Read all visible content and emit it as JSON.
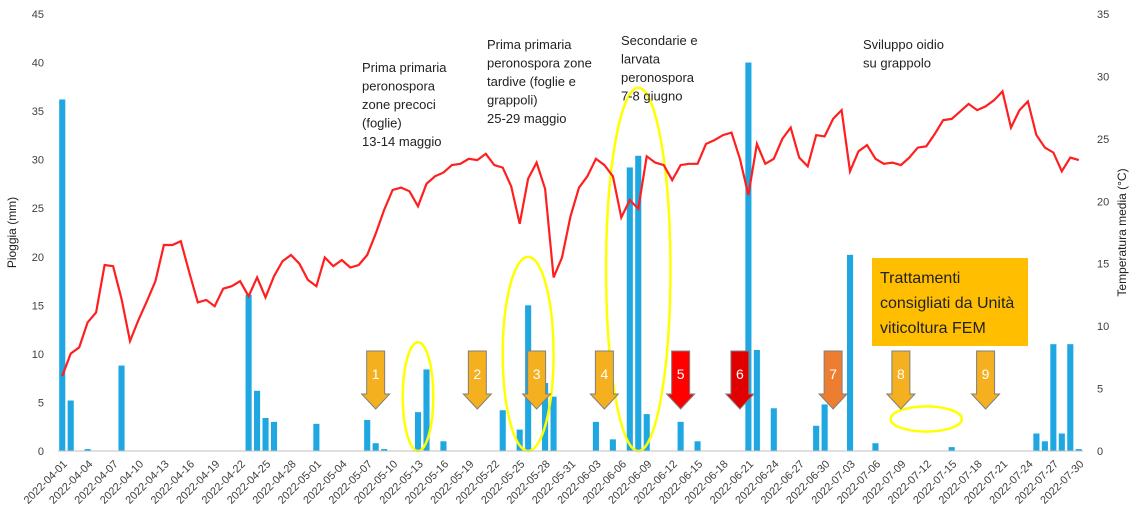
{
  "chart_data": {
    "type": "bar+line",
    "x_start": "2022-04-01",
    "x_end": "2022-07-30",
    "x_tick_labels": [
      "2022-04-01",
      "2022-04-04",
      "2022-04-07",
      "2022-04-10",
      "2022-04-13",
      "2022-04-16",
      "2022-04-19",
      "2022-04-22",
      "2022-04-25",
      "2022-04-28",
      "2022-05-01",
      "2022-05-04",
      "2022-05-07",
      "2022-05-10",
      "2022-05-13",
      "2022-05-16",
      "2022-05-19",
      "2022-05-22",
      "2022-05-25",
      "2022-05-28",
      "2022-05-31",
      "2022-06-03",
      "2022-06-06",
      "2022-06-09",
      "2022-06-12",
      "2022-06-15",
      "2022-06-18",
      "2022-06-21",
      "2022-06-24",
      "2022-06-27",
      "2022-06-30",
      "2022-07-03",
      "2022-07-06",
      "2022-07-09",
      "2022-07-12",
      "2022-07-15",
      "2022-07-18",
      "2022-07-21",
      "2022-07-24",
      "2022-07-27",
      "2022-07-30"
    ],
    "ylabel_left": "Pioggia (mm)",
    "ylabel_right": "Temperatura media (°C)",
    "ylim_left": [
      0,
      45
    ],
    "ylim_right": [
      0,
      35
    ],
    "yticks_left": [
      "0",
      "5",
      "10",
      "15",
      "20",
      "25",
      "30",
      "35",
      "40",
      "45"
    ],
    "yticks_right": [
      "0",
      "5",
      "10",
      "15",
      "20",
      "25",
      "30",
      "35"
    ],
    "bar_color": "#1ea7e1",
    "line_color": "#ff1f1f",
    "rain": [
      {
        "date": "2022-04-01",
        "mm": 36.2
      },
      {
        "date": "2022-04-02",
        "mm": 5.2
      },
      {
        "date": "2022-04-04",
        "mm": 0.2
      },
      {
        "date": "2022-04-08",
        "mm": 8.8
      },
      {
        "date": "2022-04-23",
        "mm": 16.1
      },
      {
        "date": "2022-04-24",
        "mm": 6.2
      },
      {
        "date": "2022-04-25",
        "mm": 3.4
      },
      {
        "date": "2022-04-26",
        "mm": 3.0
      },
      {
        "date": "2022-05-01",
        "mm": 2.8
      },
      {
        "date": "2022-05-07",
        "mm": 3.2
      },
      {
        "date": "2022-05-08",
        "mm": 0.8
      },
      {
        "date": "2022-05-09",
        "mm": 0.2
      },
      {
        "date": "2022-05-13",
        "mm": 4.0
      },
      {
        "date": "2022-05-14",
        "mm": 8.4
      },
      {
        "date": "2022-05-16",
        "mm": 1.0
      },
      {
        "date": "2022-05-23",
        "mm": 4.2
      },
      {
        "date": "2022-05-25",
        "mm": 2.2
      },
      {
        "date": "2022-05-26",
        "mm": 15.0
      },
      {
        "date": "2022-05-28",
        "mm": 7.0
      },
      {
        "date": "2022-05-29",
        "mm": 5.6
      },
      {
        "date": "2022-06-03",
        "mm": 3.0
      },
      {
        "date": "2022-06-05",
        "mm": 1.2
      },
      {
        "date": "2022-06-07",
        "mm": 29.2
      },
      {
        "date": "2022-06-08",
        "mm": 30.4
      },
      {
        "date": "2022-06-09",
        "mm": 3.8
      },
      {
        "date": "2022-06-13",
        "mm": 3.0
      },
      {
        "date": "2022-06-15",
        "mm": 1.0
      },
      {
        "date": "2022-06-21",
        "mm": 40.0
      },
      {
        "date": "2022-06-22",
        "mm": 10.4
      },
      {
        "date": "2022-06-24",
        "mm": 4.4
      },
      {
        "date": "2022-06-29",
        "mm": 2.6
      },
      {
        "date": "2022-06-30",
        "mm": 4.8
      },
      {
        "date": "2022-07-03",
        "mm": 20.2
      },
      {
        "date": "2022-07-06",
        "mm": 0.8
      },
      {
        "date": "2022-07-15",
        "mm": 0.4
      },
      {
        "date": "2022-07-25",
        "mm": 1.8
      },
      {
        "date": "2022-07-26",
        "mm": 1.0
      },
      {
        "date": "2022-07-27",
        "mm": 11.0
      },
      {
        "date": "2022-07-28",
        "mm": 1.8
      },
      {
        "date": "2022-07-29",
        "mm": 11.0
      },
      {
        "date": "2022-07-30",
        "mm": 0.2
      }
    ],
    "temperature": [
      {
        "date": "2022-04-01",
        "c": 6.0
      },
      {
        "date": "2022-04-02",
        "c": 7.8
      },
      {
        "date": "2022-04-03",
        "c": 8.3
      },
      {
        "date": "2022-04-04",
        "c": 10.3
      },
      {
        "date": "2022-04-05",
        "c": 11.1
      },
      {
        "date": "2022-04-06",
        "c": 14.9
      },
      {
        "date": "2022-04-07",
        "c": 14.8
      },
      {
        "date": "2022-04-08",
        "c": 12.2
      },
      {
        "date": "2022-04-09",
        "c": 8.8
      },
      {
        "date": "2022-04-10",
        "c": 10.5
      },
      {
        "date": "2022-04-11",
        "c": 12.0
      },
      {
        "date": "2022-04-12",
        "c": 13.6
      },
      {
        "date": "2022-04-13",
        "c": 16.5
      },
      {
        "date": "2022-04-14",
        "c": 16.5
      },
      {
        "date": "2022-04-15",
        "c": 16.8
      },
      {
        "date": "2022-04-16",
        "c": 14.3
      },
      {
        "date": "2022-04-17",
        "c": 11.9
      },
      {
        "date": "2022-04-18",
        "c": 12.1
      },
      {
        "date": "2022-04-19",
        "c": 11.6
      },
      {
        "date": "2022-04-20",
        "c": 13.0
      },
      {
        "date": "2022-04-21",
        "c": 13.2
      },
      {
        "date": "2022-04-22",
        "c": 13.6
      },
      {
        "date": "2022-04-23",
        "c": 12.4
      },
      {
        "date": "2022-04-24",
        "c": 13.9
      },
      {
        "date": "2022-04-25",
        "c": 12.3
      },
      {
        "date": "2022-04-26",
        "c": 14.0
      },
      {
        "date": "2022-04-27",
        "c": 15.2
      },
      {
        "date": "2022-04-28",
        "c": 15.7
      },
      {
        "date": "2022-04-29",
        "c": 15.0
      },
      {
        "date": "2022-04-30",
        "c": 13.7
      },
      {
        "date": "2022-05-01",
        "c": 13.2
      },
      {
        "date": "2022-05-02",
        "c": 15.5
      },
      {
        "date": "2022-05-03",
        "c": 14.8
      },
      {
        "date": "2022-05-04",
        "c": 15.3
      },
      {
        "date": "2022-05-05",
        "c": 14.7
      },
      {
        "date": "2022-05-06",
        "c": 14.9
      },
      {
        "date": "2022-05-07",
        "c": 15.7
      },
      {
        "date": "2022-05-08",
        "c": 17.4
      },
      {
        "date": "2022-05-09",
        "c": 19.3
      },
      {
        "date": "2022-05-10",
        "c": 20.9
      },
      {
        "date": "2022-05-11",
        "c": 21.1
      },
      {
        "date": "2022-05-12",
        "c": 20.8
      },
      {
        "date": "2022-05-13",
        "c": 19.6
      },
      {
        "date": "2022-05-14",
        "c": 21.4
      },
      {
        "date": "2022-05-15",
        "c": 22.0
      },
      {
        "date": "2022-05-16",
        "c": 22.3
      },
      {
        "date": "2022-05-17",
        "c": 22.9
      },
      {
        "date": "2022-05-18",
        "c": 23.0
      },
      {
        "date": "2022-05-19",
        "c": 23.4
      },
      {
        "date": "2022-05-20",
        "c": 23.3
      },
      {
        "date": "2022-05-21",
        "c": 23.8
      },
      {
        "date": "2022-05-22",
        "c": 22.9
      },
      {
        "date": "2022-05-23",
        "c": 22.7
      },
      {
        "date": "2022-05-24",
        "c": 21.2
      },
      {
        "date": "2022-05-25",
        "c": 18.2
      },
      {
        "date": "2022-05-26",
        "c": 21.8
      },
      {
        "date": "2022-05-27",
        "c": 23.1
      },
      {
        "date": "2022-05-28",
        "c": 21.0
      },
      {
        "date": "2022-05-29",
        "c": 13.9
      },
      {
        "date": "2022-05-30",
        "c": 15.5
      },
      {
        "date": "2022-05-31",
        "c": 18.8
      },
      {
        "date": "2022-06-01",
        "c": 21.1
      },
      {
        "date": "2022-06-02",
        "c": 22.0
      },
      {
        "date": "2022-06-03",
        "c": 23.4
      },
      {
        "date": "2022-06-04",
        "c": 22.9
      },
      {
        "date": "2022-06-05",
        "c": 22.0
      },
      {
        "date": "2022-06-06",
        "c": 18.7
      },
      {
        "date": "2022-06-07",
        "c": 20.1
      },
      {
        "date": "2022-06-08",
        "c": 19.4
      },
      {
        "date": "2022-06-09",
        "c": 23.6
      },
      {
        "date": "2022-06-10",
        "c": 23.1
      },
      {
        "date": "2022-06-11",
        "c": 22.9
      },
      {
        "date": "2022-06-12",
        "c": 21.7
      },
      {
        "date": "2022-06-13",
        "c": 22.9
      },
      {
        "date": "2022-06-14",
        "c": 23.0
      },
      {
        "date": "2022-06-15",
        "c": 23.0
      },
      {
        "date": "2022-06-16",
        "c": 24.6
      },
      {
        "date": "2022-06-17",
        "c": 24.9
      },
      {
        "date": "2022-06-18",
        "c": 25.3
      },
      {
        "date": "2022-06-19",
        "c": 25.5
      },
      {
        "date": "2022-06-20",
        "c": 23.4
      },
      {
        "date": "2022-06-21",
        "c": 20.5
      },
      {
        "date": "2022-06-22",
        "c": 24.6
      },
      {
        "date": "2022-06-23",
        "c": 23.0
      },
      {
        "date": "2022-06-24",
        "c": 23.4
      },
      {
        "date": "2022-06-25",
        "c": 25.0
      },
      {
        "date": "2022-06-26",
        "c": 25.9
      },
      {
        "date": "2022-06-27",
        "c": 23.5
      },
      {
        "date": "2022-06-28",
        "c": 22.8
      },
      {
        "date": "2022-06-29",
        "c": 25.3
      },
      {
        "date": "2022-06-30",
        "c": 25.2
      },
      {
        "date": "2022-07-01",
        "c": 26.6
      },
      {
        "date": "2022-07-02",
        "c": 27.3
      },
      {
        "date": "2022-07-03",
        "c": 22.4
      },
      {
        "date": "2022-07-04",
        "c": 24.0
      },
      {
        "date": "2022-07-05",
        "c": 24.5
      },
      {
        "date": "2022-07-06",
        "c": 23.4
      },
      {
        "date": "2022-07-07",
        "c": 23.0
      },
      {
        "date": "2022-07-08",
        "c": 23.1
      },
      {
        "date": "2022-07-09",
        "c": 22.9
      },
      {
        "date": "2022-07-10",
        "c": 23.5
      },
      {
        "date": "2022-07-11",
        "c": 24.3
      },
      {
        "date": "2022-07-12",
        "c": 24.4
      },
      {
        "date": "2022-07-13",
        "c": 25.4
      },
      {
        "date": "2022-07-14",
        "c": 26.5
      },
      {
        "date": "2022-07-15",
        "c": 26.6
      },
      {
        "date": "2022-07-16",
        "c": 27.2
      },
      {
        "date": "2022-07-17",
        "c": 27.8
      },
      {
        "date": "2022-07-18",
        "c": 27.3
      },
      {
        "date": "2022-07-19",
        "c": 27.6
      },
      {
        "date": "2022-07-20",
        "c": 28.1
      },
      {
        "date": "2022-07-21",
        "c": 28.8
      },
      {
        "date": "2022-07-22",
        "c": 25.9
      },
      {
        "date": "2022-07-23",
        "c": 27.3
      },
      {
        "date": "2022-07-24",
        "c": 28.0
      },
      {
        "date": "2022-07-25",
        "c": 25.3
      },
      {
        "date": "2022-07-26",
        "c": 24.3
      },
      {
        "date": "2022-07-27",
        "c": 23.9
      },
      {
        "date": "2022-07-28",
        "c": 22.4
      },
      {
        "date": "2022-07-29",
        "c": 23.5
      },
      {
        "date": "2022-07-30",
        "c": 23.3
      }
    ],
    "annotations": [
      {
        "lines": [
          "Prima primaria",
          "peronospora",
          "zone precoci",
          "(foglie)",
          "13-14 maggio"
        ]
      },
      {
        "lines": [
          "Prima primaria",
          "peronospora zone",
          "tardive (foglie e",
          "grappoli)",
          "25-29 maggio"
        ]
      },
      {
        "lines": [
          "Secondarie e",
          "larvata",
          "peronospora",
          "7-8 giugno"
        ]
      },
      {
        "lines": [
          "Sviluppo oidio",
          "su grappolo"
        ]
      }
    ],
    "treatment_box": {
      "lines": [
        "Trattamenti",
        "consigliati da Unità",
        "viticoltura FEM"
      ],
      "color": "#ffbf00"
    },
    "treatments": [
      {
        "label": "1",
        "date": "2022-05-08",
        "color": "#f5b020"
      },
      {
        "label": "2",
        "date": "2022-05-20",
        "color": "#f5b020"
      },
      {
        "label": "3",
        "date": "2022-05-27",
        "color": "#f5b020"
      },
      {
        "label": "4",
        "date": "2022-06-04",
        "color": "#f5b020"
      },
      {
        "label": "5",
        "date": "2022-06-13",
        "color": "#ff0000"
      },
      {
        "label": "6",
        "date": "2022-06-20",
        "color": "#e00000"
      },
      {
        "label": "7",
        "date": "2022-07-01",
        "color": "#ed7d31"
      },
      {
        "label": "8",
        "date": "2022-07-09",
        "color": "#f5b020"
      },
      {
        "label": "9",
        "date": "2022-07-19",
        "color": "#f5b020"
      }
    ],
    "highlight_ellipse_color": "#ffff00",
    "highlights": [
      {
        "date": "2022-05-13",
        "ymm": 5.6,
        "rx_days": 1.8,
        "ry_mm": 5.6
      },
      {
        "date": "2022-05-26",
        "ymm": 10.0,
        "rx_days": 3.0,
        "ry_mm": 10.0
      },
      {
        "date": "2022-06-08",
        "ymm": 18.7,
        "rx_days": 3.8,
        "ry_mm": 18.7
      },
      {
        "date": "2022-07-12",
        "ymm": 3.3,
        "rx_days": 4.2,
        "ry_mm": 1.3
      }
    ],
    "grid": false,
    "legend": "none"
  }
}
